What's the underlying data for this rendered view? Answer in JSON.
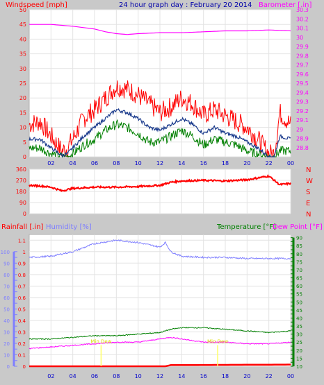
{
  "chart_data": [
    {
      "type": "line",
      "title": "24 hour graph day : February 20 2014",
      "y_left_label": "Windspeed [mph]",
      "y_right_label": "Barometer [.in]",
      "x_ticks": [
        "02",
        "04",
        "06",
        "08",
        "10",
        "12",
        "14",
        "16",
        "18",
        "20",
        "22",
        "00"
      ],
      "x_range_hours": [
        0,
        24
      ],
      "y_left_ticks": [
        0,
        5,
        10,
        15,
        20,
        25,
        30,
        35,
        40,
        45,
        50
      ],
      "ylim_left": [
        0,
        50
      ],
      "y_right_ticks": [
        "28.8",
        "28.9",
        "29",
        "29.1",
        "29.2",
        "29.3",
        "29.4",
        "29.5",
        "29.6",
        "29.7",
        "29.8",
        "29.9",
        "30",
        "30.1",
        "30.2",
        "30.3"
      ],
      "ylim_right": [
        28.7,
        30.3
      ],
      "grid": true,
      "series": [
        {
          "role": "gust",
          "color": "#ff0000",
          "axis": "left",
          "hours": [
            0,
            1,
            2,
            3,
            3.5,
            4,
            5,
            6,
            7,
            8,
            9,
            10,
            11,
            12,
            13,
            14,
            15,
            16,
            17,
            18,
            19,
            20,
            21,
            22,
            22.5,
            23,
            24
          ],
          "values": [
            11,
            12,
            7,
            2,
            3,
            6,
            13,
            16,
            20,
            24,
            23,
            21,
            18,
            15,
            17,
            20,
            18,
            14,
            16,
            14,
            12,
            10,
            6,
            1,
            1,
            15,
            11
          ]
        },
        {
          "role": "average",
          "color": "#1a3a8c",
          "axis": "left",
          "hours": [
            0,
            1,
            2,
            3,
            3.5,
            4,
            5,
            6,
            7,
            8,
            9,
            10,
            11,
            12,
            13,
            14,
            15,
            16,
            17,
            18,
            19,
            20,
            21,
            22,
            22.5,
            23,
            24
          ],
          "values": [
            6,
            6,
            3,
            0.5,
            1,
            3,
            7,
            10,
            13,
            16,
            15,
            13,
            10,
            9,
            11,
            13,
            11,
            8,
            10,
            8,
            7,
            5,
            3,
            0,
            0,
            7,
            6
          ]
        },
        {
          "role": "low",
          "color": "#008000",
          "axis": "left",
          "hours": [
            0,
            1,
            2,
            3,
            3.5,
            4,
            5,
            6,
            7,
            8,
            9,
            10,
            11,
            12,
            13,
            14,
            15,
            16,
            17,
            18,
            19,
            20,
            21,
            22,
            22.5,
            23,
            24
          ],
          "values": [
            3,
            3,
            1,
            0,
            0,
            1,
            4,
            6,
            9,
            11,
            10,
            8,
            5,
            5,
            7,
            9,
            7,
            4,
            6,
            5,
            4,
            2,
            1,
            0,
            0,
            2,
            2
          ]
        },
        {
          "role": "barometer",
          "color": "#ff00ff",
          "axis": "right",
          "hours": [
            0,
            2,
            4,
            6,
            7,
            8,
            9,
            10,
            12,
            14,
            16,
            18,
            20,
            22,
            24
          ],
          "values": [
            30.14,
            30.14,
            30.12,
            30.09,
            30.06,
            30.04,
            30.03,
            30.04,
            30.05,
            30.05,
            30.06,
            30.07,
            30.07,
            30.08,
            30.07
          ]
        }
      ]
    },
    {
      "type": "line",
      "y_ticks": [
        0,
        90,
        180,
        270,
        360
      ],
      "ylim": [
        0,
        360
      ],
      "compass_labels": [
        "N",
        "W",
        "S",
        "E",
        "N"
      ],
      "series": [
        {
          "role": "direction",
          "color": "#ff0000",
          "hours": [
            0,
            1,
            2,
            3,
            4,
            5,
            6,
            8,
            10,
            12,
            13,
            14,
            16,
            18,
            20,
            22,
            23,
            24
          ],
          "values": [
            230,
            225,
            215,
            185,
            205,
            210,
            215,
            215,
            220,
            230,
            255,
            265,
            270,
            265,
            275,
            305,
            235,
            245
          ]
        }
      ]
    },
    {
      "type": "line",
      "y_left_label": "Rainfall [.in]",
      "y_left2_label": "Humidity [%]",
      "y_right_label": "Temperature [°F]",
      "y_right2_label": "Dew Point [°F]",
      "y_left_ticks": [
        "0",
        "0.1",
        "0.2",
        "0.3",
        "0.4",
        "0.5",
        "0.6",
        "0.7",
        "0.8",
        "0.9",
        "1",
        "1.1"
      ],
      "ylim_left": [
        0,
        1.15
      ],
      "y_left2_ticks": [
        0,
        10,
        20,
        30,
        40,
        50,
        60,
        70,
        80,
        90,
        100
      ],
      "ylim_left2": [
        0,
        100
      ],
      "y_right_ticks": [
        10,
        15,
        20,
        25,
        30,
        35,
        40,
        45,
        50,
        55,
        60,
        65,
        70,
        75,
        80,
        85,
        90
      ],
      "ylim_right": [
        10,
        92
      ],
      "series": [
        {
          "role": "humidity",
          "color": "#7f7fff",
          "axis": "left2",
          "hours": [
            0,
            2,
            4,
            6,
            8,
            10,
            12,
            12.5,
            13,
            14,
            16,
            18,
            20,
            22,
            24
          ],
          "values": [
            95,
            96,
            100,
            107,
            110,
            108,
            104,
            108,
            100,
            96,
            95,
            95,
            94,
            94,
            94
          ]
        },
        {
          "role": "temperature",
          "color": "#008000",
          "axis": "right",
          "hours": [
            0,
            2,
            4,
            6,
            8,
            10,
            12,
            13,
            14,
            16,
            18,
            20,
            22,
            24
          ],
          "values": [
            27,
            27,
            28,
            29,
            29,
            30,
            31,
            33,
            34,
            34,
            33,
            32,
            31,
            32
          ]
        },
        {
          "role": "dew_point",
          "color": "#ff00ff",
          "axis": "right",
          "hours": [
            0,
            2,
            4,
            6,
            8,
            10,
            12,
            13,
            14,
            16,
            18,
            20,
            22,
            24
          ],
          "values": [
            21,
            22,
            23,
            24,
            25,
            25,
            27,
            28,
            27,
            25,
            25,
            24,
            24,
            25
          ]
        },
        {
          "role": "rainfall",
          "color": "#ff0000",
          "axis": "left",
          "hours": [
            0,
            12.5,
            13,
            24
          ],
          "values": [
            0,
            0,
            0.01,
            0.015
          ]
        }
      ],
      "annotations": [
        {
          "label": "Min Dew",
          "hour": 6.6,
          "value": 24
        },
        {
          "label": "Min Dew",
          "hour": 17.3,
          "value": 24
        }
      ]
    }
  ]
}
